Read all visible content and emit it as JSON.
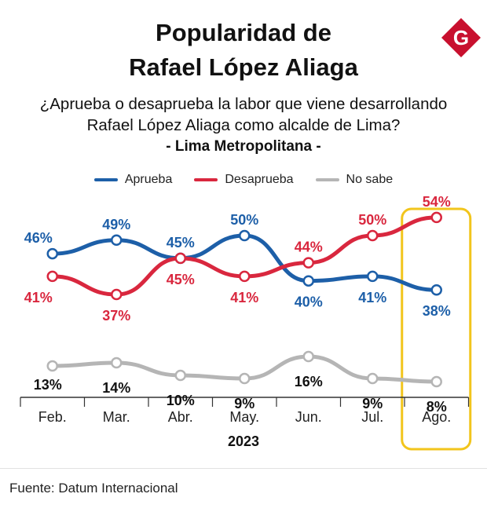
{
  "header": {
    "title_line1": "Popularidad de",
    "title_line2": "Rafael López Aliaga",
    "question_line1": "¿Aprueba o desaprueba la labor que viene desarrollando",
    "question_line2": "Rafael López Aliaga como alcalde de Lima?",
    "region": "- Lima Metropolitana -",
    "logo_letter": "G"
  },
  "colors": {
    "aprueba": "#1d5fa8",
    "desaprueba": "#d9273e",
    "no_sabe": "#b5b5b5",
    "highlight": "#f2c51c",
    "logo": "#c8102e"
  },
  "chart_data": {
    "type": "line",
    "title": "Popularidad de Rafael López Aliaga",
    "xlabel": "2023",
    "ylabel": "",
    "ylim": [
      0,
      60
    ],
    "grid": false,
    "legend": "top-center",
    "categories": [
      "Feb.",
      "Mar.",
      "Abr.",
      "May.",
      "Jun.",
      "Jul.",
      "Ago."
    ],
    "highlighted_category": "Ago.",
    "series": [
      {
        "name": "Aprueba",
        "key": "aprueba",
        "values": [
          46,
          49,
          45,
          50,
          40,
          41,
          38
        ],
        "labels": [
          "46%",
          "49%",
          "45%",
          "50%",
          "40%",
          "41%",
          "38%"
        ]
      },
      {
        "name": "Desaprueba",
        "key": "desaprueba",
        "values": [
          41,
          37,
          45,
          41,
          44,
          50,
          54
        ],
        "labels": [
          "41%",
          "37%",
          "45%",
          "41%",
          "44%",
          "50%",
          "54%"
        ]
      },
      {
        "name": "No sabe",
        "key": "no_sabe",
        "values": [
          13,
          14,
          10,
          9,
          16,
          9,
          8
        ],
        "labels": [
          "13%",
          "14%",
          "10%",
          "9%",
          "16%",
          "9%",
          "8%"
        ]
      }
    ]
  },
  "footer": {
    "source": "Fuente: Datum Internacional"
  }
}
